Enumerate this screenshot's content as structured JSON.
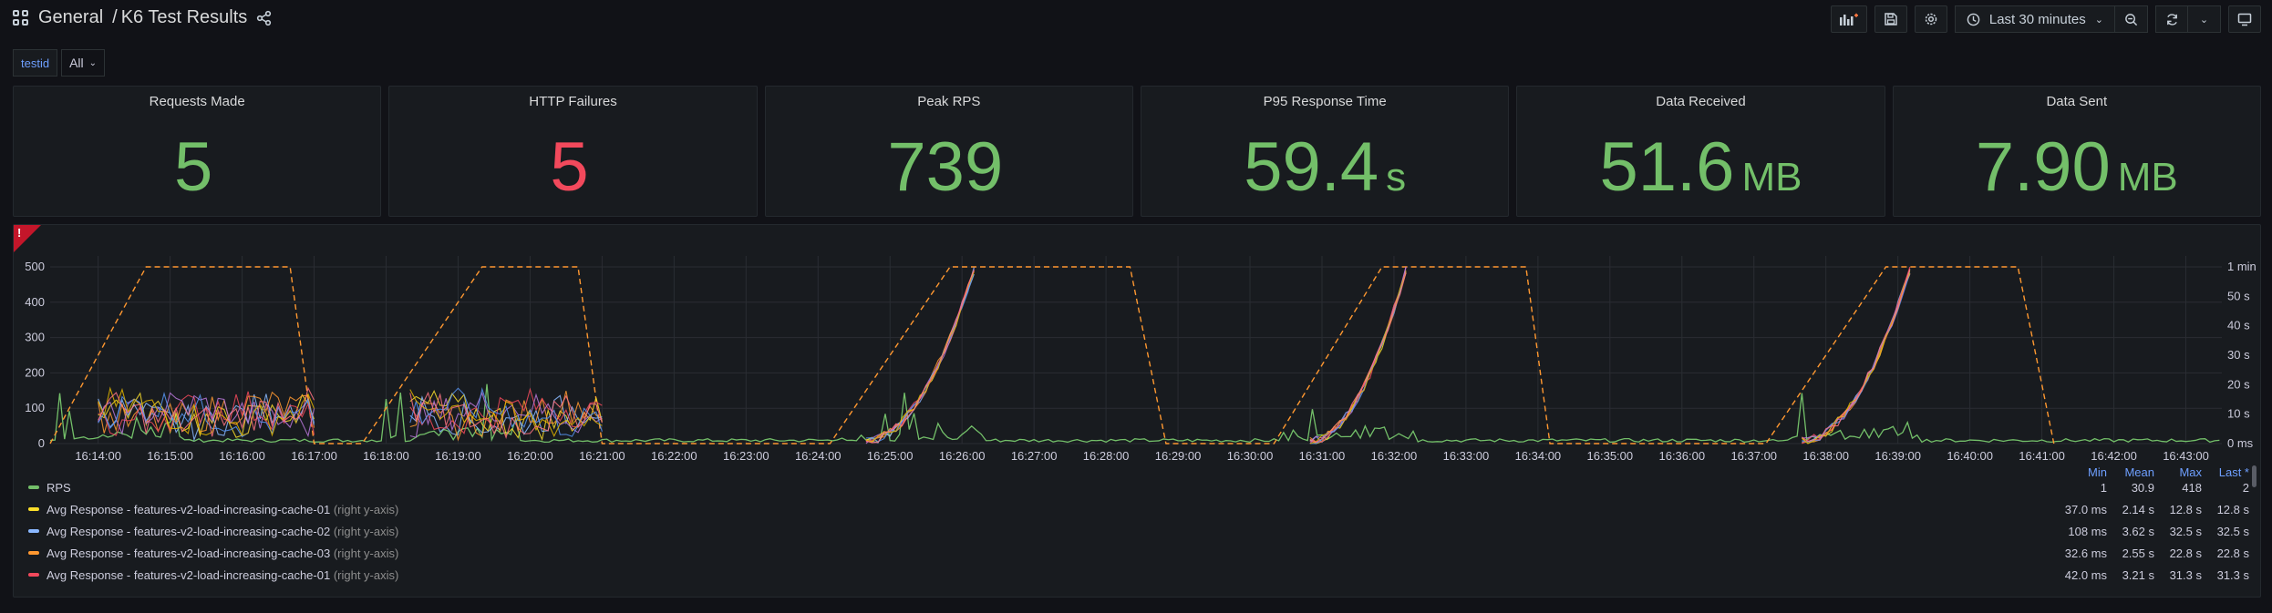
{
  "header": {
    "folder": "General",
    "separator": "/",
    "title": "K6 Test Results",
    "time_range": "Last 30 minutes"
  },
  "variables": [
    {
      "label": "testid",
      "value": "All"
    }
  ],
  "stats": [
    {
      "title": "Requests Made",
      "value": "5",
      "unit": "",
      "color": "#73bf69"
    },
    {
      "title": "HTTP Failures",
      "value": "5",
      "unit": "",
      "color": "#f2495c"
    },
    {
      "title": "Peak RPS",
      "value": "739",
      "unit": "",
      "color": "#73bf69"
    },
    {
      "title": "P95 Response Time",
      "value": "59.4",
      "unit": "s",
      "color": "#73bf69"
    },
    {
      "title": "Data Received",
      "value": "51.6",
      "unit": "MB",
      "color": "#73bf69"
    },
    {
      "title": "Data Sent",
      "value": "7.90",
      "unit": "MB",
      "color": "#73bf69"
    }
  ],
  "chart_data": {
    "type": "line",
    "grid": true,
    "legend_placement": "bottom",
    "x_ticks": [
      "16:14:00",
      "16:15:00",
      "16:16:00",
      "16:17:00",
      "16:18:00",
      "16:19:00",
      "16:20:00",
      "16:21:00",
      "16:22:00",
      "16:23:00",
      "16:24:00",
      "16:25:00",
      "16:26:00",
      "16:27:00",
      "16:28:00",
      "16:29:00",
      "16:30:00",
      "16:31:00",
      "16:32:00",
      "16:33:00",
      "16:34:00",
      "16:35:00",
      "16:36:00",
      "16:37:00",
      "16:38:00",
      "16:39:00",
      "16:40:00",
      "16:41:00",
      "16:42:00",
      "16:43:00"
    ],
    "y_left_ticks": [
      "0",
      "100",
      "200",
      "300",
      "400",
      "500"
    ],
    "y_left_range": [
      0,
      500
    ],
    "y_right_ticks": [
      "0 ms",
      "10 s",
      "20 s",
      "30 s",
      "40 s",
      "50 s",
      "1 min"
    ],
    "y_right_range": [
      0,
      60
    ],
    "x_range": [
      "16:13:20",
      "16:43:30"
    ],
    "stages": [
      {
        "start": "16:13:20",
        "ramp_up_end": "16:14:40",
        "plateau_end": "16:16:40",
        "end": "16:17:00"
      },
      {
        "start": "16:17:40",
        "ramp_up_end": "16:19:20",
        "plateau_end": "16:20:40",
        "end": "16:21:00"
      },
      {
        "start": "16:24:10",
        "ramp_up_end": "16:25:50",
        "plateau_end": "16:28:20",
        "end": "16:28:50"
      },
      {
        "start": "16:30:20",
        "ramp_up_end": "16:31:50",
        "plateau_end": "16:33:50",
        "end": "16:34:10"
      },
      {
        "start": "16:37:10",
        "ramp_up_end": "16:38:50",
        "plateau_end": "16:40:40",
        "end": "16:41:10"
      }
    ],
    "vus_level": 500,
    "series": [
      {
        "name": "RPS",
        "color": "#73bf69",
        "min": "1",
        "mean": "30.9",
        "max": "418",
        "last": "2",
        "axis_note": ""
      },
      {
        "name": "Avg Response - features-v2-load-increasing-cache-01",
        "color": "#fade2a",
        "min": "37.0 ms",
        "mean": "2.14 s",
        "max": "12.8 s",
        "last": "12.8 s",
        "axis_note": "(right y-axis)"
      },
      {
        "name": "Avg Response - features-v2-load-increasing-cache-02",
        "color": "#8ab8ff",
        "min": "108 ms",
        "mean": "3.62 s",
        "max": "32.5 s",
        "last": "32.5 s",
        "axis_note": "(right y-axis)"
      },
      {
        "name": "Avg Response - features-v2-load-increasing-cache-03",
        "color": "#ff9830",
        "min": "32.6 ms",
        "mean": "2.55 s",
        "max": "22.8 s",
        "last": "22.8 s",
        "axis_note": "(right y-axis)"
      },
      {
        "name": "Avg Response - features-v2-load-increasing-cache-01",
        "color": "#f2495c",
        "min": "42.0 ms",
        "mean": "3.21 s",
        "max": "31.3 s",
        "last": "31.3 s",
        "axis_note": "(right y-axis)"
      }
    ]
  },
  "legend": {
    "col_min": "Min",
    "col_mean": "Mean",
    "col_max": "Max",
    "col_last": "Last *"
  }
}
